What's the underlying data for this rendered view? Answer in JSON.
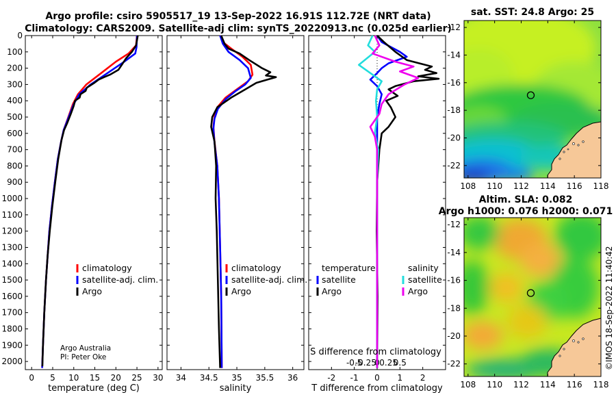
{
  "header": {
    "title_line1": "Argo profile: csiro 5905517_19 13-Sep-2022 16.91S 112.72E (NRT data)",
    "title_line2": "Climatology: CARS2009. Satellite-adj clim: synTS_20220913.nc (0.025d earlier)"
  },
  "colors": {
    "climatology": "#ff0000",
    "satellite": "#0000ff",
    "argo": "#000000",
    "sat_salinity": "#22dddd",
    "argo_salinity": "#ee00ee",
    "land": "#f6c898"
  },
  "footer": {
    "credit_line1": "Argo Australia",
    "credit_line2": "PI: Peter Oke",
    "watermark": "©IMOS 18-Sep-2022 11:40:42"
  },
  "chart_data": [
    {
      "id": "temperature",
      "type": "line",
      "xlabel": "temperature (deg C)",
      "ylabel": "",
      "xlim": [
        -1.5,
        31
      ],
      "ylim": [
        2050,
        0
      ],
      "xticks": [
        0,
        5,
        10,
        15,
        20,
        25,
        30
      ],
      "yticks": [
        0,
        100,
        200,
        300,
        400,
        500,
        600,
        700,
        800,
        900,
        1000,
        1100,
        1200,
        1300,
        1400,
        1500,
        1600,
        1700,
        1800,
        1900,
        2000
      ],
      "legend": [
        "climatology",
        "satellite-adj. clim.",
        "Argo"
      ],
      "series": [
        {
          "name": "climatology",
          "color": "#ff0000",
          "points": [
            [
              25.0,
              0
            ],
            [
              24.8,
              60
            ],
            [
              23.0,
              110
            ],
            [
              20.0,
              160
            ],
            [
              16.5,
              230
            ],
            [
              13.0,
              300
            ],
            [
              11.0,
              360
            ],
            [
              9.8,
              420
            ],
            [
              8.7,
              500
            ],
            [
              7.6,
              580
            ],
            [
              7.0,
              650
            ],
            [
              6.2,
              760
            ],
            [
              5.5,
              900
            ],
            [
              4.8,
              1050
            ],
            [
              4.2,
              1200
            ],
            [
              3.8,
              1350
            ],
            [
              3.4,
              1500
            ],
            [
              3.0,
              1700
            ],
            [
              2.7,
              1900
            ],
            [
              2.5,
              2040
            ]
          ]
        },
        {
          "name": "satellite-adj. clim.",
          "color": "#0000ff",
          "points": [
            [
              25.0,
              0
            ],
            [
              24.9,
              70
            ],
            [
              24.6,
              110
            ],
            [
              22.0,
              160
            ],
            [
              18.0,
              230
            ],
            [
              14.0,
              300
            ],
            [
              11.3,
              360
            ],
            [
              10.0,
              420
            ],
            [
              8.8,
              500
            ],
            [
              7.6,
              580
            ],
            [
              7.0,
              650
            ],
            [
              6.2,
              760
            ],
            [
              5.5,
              900
            ],
            [
              4.8,
              1050
            ],
            [
              4.2,
              1200
            ],
            [
              3.8,
              1350
            ],
            [
              3.4,
              1500
            ],
            [
              3.0,
              1700
            ],
            [
              2.7,
              1900
            ],
            [
              2.5,
              2040
            ]
          ]
        },
        {
          "name": "Argo",
          "color": "#000000",
          "points": [
            [
              25.2,
              0
            ],
            [
              24.8,
              60
            ],
            [
              23.8,
              100
            ],
            [
              22.4,
              140
            ],
            [
              21.4,
              180
            ],
            [
              20.6,
              210
            ],
            [
              18.6,
              240
            ],
            [
              17.2,
              255
            ],
            [
              15.9,
              270
            ],
            [
              14.9,
              290
            ],
            [
              14.3,
              300
            ],
            [
              13.1,
              320
            ],
            [
              12.8,
              340
            ],
            [
              11.6,
              360
            ],
            [
              11.4,
              380
            ],
            [
              10.3,
              400
            ],
            [
              10.0,
              430
            ],
            [
              9.3,
              480
            ],
            [
              8.4,
              540
            ],
            [
              7.7,
              580
            ],
            [
              7.1,
              640
            ],
            [
              6.3,
              760
            ],
            [
              5.6,
              900
            ],
            [
              4.9,
              1050
            ],
            [
              4.3,
              1200
            ],
            [
              3.8,
              1350
            ],
            [
              3.4,
              1500
            ],
            [
              3.0,
              1700
            ],
            [
              2.7,
              1900
            ],
            [
              2.55,
              2030
            ]
          ]
        }
      ]
    },
    {
      "id": "salinity",
      "type": "line",
      "xlabel": "salinity",
      "ylabel": "",
      "xlim": [
        33.75,
        36.2
      ],
      "ylim": [
        2050,
        0
      ],
      "xticks": [
        34,
        34.5,
        35,
        35.5,
        36
      ],
      "xtick_labels": [
        "34",
        "34.5",
        "35",
        "35.5",
        "36"
      ],
      "legend": [
        "climatology",
        "satellite-adj. clim.",
        "Argo"
      ],
      "series": [
        {
          "name": "climatology",
          "color": "#ff0000",
          "points": [
            [
              34.7,
              0
            ],
            [
              34.75,
              40
            ],
            [
              34.9,
              80
            ],
            [
              35.1,
              130
            ],
            [
              35.25,
              180
            ],
            [
              35.28,
              240
            ],
            [
              35.2,
              280
            ],
            [
              35.0,
              330
            ],
            [
              34.8,
              380
            ],
            [
              34.65,
              440
            ],
            [
              34.6,
              500
            ],
            [
              34.58,
              560
            ],
            [
              34.6,
              650
            ],
            [
              34.65,
              800
            ],
            [
              34.68,
              1000
            ],
            [
              34.7,
              1300
            ],
            [
              34.72,
              1600
            ],
            [
              34.73,
              2040
            ]
          ]
        },
        {
          "name": "satellite-adj. clim.",
          "color": "#0000ff",
          "points": [
            [
              34.7,
              0
            ],
            [
              34.75,
              50
            ],
            [
              34.85,
              100
            ],
            [
              35.05,
              150
            ],
            [
              35.2,
              200
            ],
            [
              35.25,
              260
            ],
            [
              35.15,
              300
            ],
            [
              34.98,
              340
            ],
            [
              34.8,
              390
            ],
            [
              34.66,
              450
            ],
            [
              34.6,
              510
            ],
            [
              34.58,
              570
            ],
            [
              34.6,
              660
            ],
            [
              34.65,
              800
            ],
            [
              34.68,
              1000
            ],
            [
              34.7,
              1300
            ],
            [
              34.72,
              1600
            ],
            [
              34.73,
              2040
            ]
          ]
        },
        {
          "name": "Argo",
          "color": "#000000",
          "points": [
            [
              34.72,
              0
            ],
            [
              34.78,
              50
            ],
            [
              34.85,
              80
            ],
            [
              35.05,
              110
            ],
            [
              35.22,
              150
            ],
            [
              35.45,
              200
            ],
            [
              35.6,
              225
            ],
            [
              35.52,
              245
            ],
            [
              35.7,
              255
            ],
            [
              35.55,
              270
            ],
            [
              35.35,
              290
            ],
            [
              35.15,
              330
            ],
            [
              34.9,
              380
            ],
            [
              34.65,
              440
            ],
            [
              34.56,
              500
            ],
            [
              34.54,
              560
            ],
            [
              34.6,
              650
            ],
            [
              34.63,
              800
            ],
            [
              34.62,
              1000
            ],
            [
              34.64,
              1200
            ],
            [
              34.66,
              1500
            ],
            [
              34.68,
              1800
            ],
            [
              34.7,
              2040
            ]
          ]
        }
      ]
    },
    {
      "id": "difference",
      "type": "line",
      "xlabel": "T difference from climatology",
      "top_xlabel": "S difference from climatology",
      "xlim": [
        -3,
        3
      ],
      "ylim": [
        2050,
        0
      ],
      "xticks": [
        -2,
        -1,
        0,
        1,
        2
      ],
      "xtick_labels": [
        "-2",
        "-1",
        "0",
        "1",
        "2"
      ],
      "top_xticks": [
        -1.0,
        -0.5,
        0,
        0.5,
        1.0
      ],
      "top_xtick_labels": [
        "-0.5",
        "-0.25",
        "0",
        "0.25",
        "0.5"
      ],
      "zero_line": true,
      "legend_temperature": {
        "heading": "temperature",
        "items": [
          "satellite",
          "Argo"
        ]
      },
      "legend_salinity": {
        "heading": "salinity",
        "items": [
          "satellite",
          "Argo"
        ]
      },
      "series": [
        {
          "name": "T satellite",
          "color": "#0000ff",
          "points": [
            [
              0.0,
              0
            ],
            [
              0.2,
              40
            ],
            [
              1.0,
              100
            ],
            [
              1.3,
              130
            ],
            [
              0.5,
              170
            ],
            [
              0.2,
              200
            ],
            [
              0.0,
              230
            ],
            [
              -0.3,
              270
            ],
            [
              0.0,
              310
            ],
            [
              0.2,
              360
            ],
            [
              0.1,
              420
            ],
            [
              0.0,
              500
            ],
            [
              0.0,
              560
            ],
            [
              0.0,
              700
            ],
            [
              0.0,
              1000
            ],
            [
              0.0,
              1500
            ],
            [
              0.0,
              2040
            ]
          ]
        },
        {
          "name": "T Argo",
          "color": "#000000",
          "points": [
            [
              0.0,
              0
            ],
            [
              0.3,
              40
            ],
            [
              0.8,
              100
            ],
            [
              1.3,
              150
            ],
            [
              2.4,
              190
            ],
            [
              2.1,
              210
            ],
            [
              2.6,
              230
            ],
            [
              1.8,
              250
            ],
            [
              2.7,
              265
            ],
            [
              1.6,
              280
            ],
            [
              0.8,
              310
            ],
            [
              0.5,
              330
            ],
            [
              0.9,
              370
            ],
            [
              0.4,
              400
            ],
            [
              0.6,
              440
            ],
            [
              0.8,
              500
            ],
            [
              0.5,
              560
            ],
            [
              0.2,
              600
            ],
            [
              0.1,
              700
            ],
            [
              0.0,
              900
            ],
            [
              -0.02,
              1200
            ],
            [
              0.02,
              1600
            ],
            [
              0.0,
              2040
            ]
          ]
        },
        {
          "name": "S satellite",
          "color": "#22dddd",
          "points": [
            [
              -0.2,
              0
            ],
            [
              -0.4,
              60
            ],
            [
              -0.1,
              100
            ],
            [
              -0.8,
              180
            ],
            [
              -0.2,
              240
            ],
            [
              0.2,
              280
            ],
            [
              0.0,
              330
            ],
            [
              -0.05,
              400
            ],
            [
              0.0,
              500
            ],
            [
              -0.1,
              600
            ],
            [
              0.05,
              700
            ],
            [
              0.0,
              900
            ],
            [
              0.0,
              1200
            ],
            [
              0.0,
              1600
            ],
            [
              0.0,
              2040
            ]
          ]
        },
        {
          "name": "S Argo",
          "color": "#ee00ee",
          "points": [
            [
              -0.1,
              0
            ],
            [
              0.1,
              60
            ],
            [
              -0.2,
              110
            ],
            [
              0.8,
              160
            ],
            [
              1.6,
              190
            ],
            [
              1.0,
              220
            ],
            [
              1.8,
              260
            ],
            [
              1.2,
              300
            ],
            [
              0.5,
              360
            ],
            [
              0.2,
              420
            ],
            [
              0.1,
              480
            ],
            [
              -0.3,
              560
            ],
            [
              -0.1,
              620
            ],
            [
              0.0,
              700
            ],
            [
              0.0,
              900
            ],
            [
              0.0,
              1200
            ],
            [
              0.0,
              1600
            ],
            [
              0.0,
              2040
            ]
          ]
        }
      ]
    },
    {
      "id": "sst_map",
      "type": "heatmap",
      "title": "sat. SST: 24.8 Argo: 25",
      "xlim": [
        107.7,
        118
      ],
      "ylim": [
        -22.9,
        -11.5
      ],
      "xticks": [
        108,
        110,
        112,
        114,
        116,
        118
      ],
      "xtick_labels": [
        "108",
        "110",
        "112",
        "114",
        "116",
        "118"
      ],
      "yticks": [
        -12,
        -14,
        -16,
        -18,
        -20,
        -22
      ],
      "yticklabels": [
        "-12",
        "-14",
        "-16",
        "-18",
        "-20",
        "-22"
      ],
      "marker": [
        112.72,
        -16.91
      ]
    },
    {
      "id": "sla_map",
      "type": "heatmap",
      "title": "Altim. SLA: 0.082",
      "subtitle": "Argo h1000: 0.076 h2000: 0.071",
      "xlim": [
        107.7,
        118
      ],
      "ylim": [
        -22.9,
        -11.5
      ],
      "xticks": [
        108,
        110,
        112,
        114,
        116,
        118
      ],
      "xtick_labels": [
        "108",
        "110",
        "112",
        "114",
        "116",
        "118"
      ],
      "yticks": [
        -12,
        -14,
        -16,
        -18,
        -20,
        -22
      ],
      "yticklabels": [
        "-12",
        "-14",
        "-16",
        "-18",
        "-20",
        "-22"
      ],
      "marker": [
        112.72,
        -16.91
      ]
    }
  ]
}
